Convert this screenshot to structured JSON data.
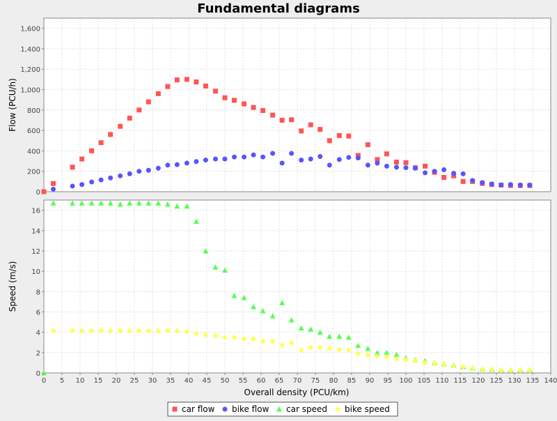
{
  "chart_data": {
    "type": "scatter",
    "title": "Fundamental diagrams",
    "x": {
      "label": "Overall density (PCU/km)",
      "range": [
        0,
        140
      ],
      "ticks": [
        0,
        5,
        10,
        15,
        20,
        25,
        30,
        35,
        40,
        45,
        50,
        55,
        60,
        65,
        70,
        75,
        80,
        85,
        90,
        95,
        100,
        105,
        110,
        115,
        120,
        125,
        130,
        135,
        140
      ],
      "tick_labels": [
        "0",
        "5",
        "10",
        "15",
        "20",
        "25",
        "30",
        "35",
        "40",
        "45",
        "50",
        "55",
        "60",
        "65",
        "70",
        "75",
        "80",
        "85",
        "90",
        "95",
        "100",
        "105",
        "110",
        "115",
        "120",
        "125",
        "130",
        "135",
        "140"
      ]
    },
    "panels": [
      {
        "name": "flow",
        "ylabel": "Flow (PCU/h)",
        "ylim": [
          0,
          1700
        ],
        "yticks": [
          0,
          200,
          400,
          600,
          800,
          1000,
          1200,
          1400,
          1600
        ],
        "ytick_labels": [
          "0",
          "200",
          "400",
          "600",
          "800",
          "1,000",
          "1,200",
          "1,400",
          "1,600"
        ],
        "grid": true,
        "series": [
          {
            "name": "car flow",
            "color": "#ff5555",
            "marker": "square",
            "points": [
              [
                0,
                0
              ],
              [
                2.6,
                80
              ],
              [
                7.9,
                240
              ],
              [
                10.5,
                320
              ],
              [
                13.2,
                400
              ],
              [
                15.8,
                480
              ],
              [
                18.4,
                560
              ],
              [
                21.1,
                640
              ],
              [
                23.7,
                720
              ],
              [
                26.3,
                800
              ],
              [
                28.9,
                880
              ],
              [
                31.6,
                960
              ],
              [
                34.2,
                1030
              ],
              [
                36.8,
                1095
              ],
              [
                39.5,
                1100
              ],
              [
                42.1,
                1075
              ],
              [
                44.7,
                1035
              ],
              [
                47.4,
                985
              ],
              [
                50.0,
                920
              ],
              [
                52.6,
                895
              ],
              [
                55.3,
                860
              ],
              [
                57.9,
                825
              ],
              [
                60.5,
                795
              ],
              [
                63.2,
                750
              ],
              [
                65.8,
                700
              ],
              [
                68.4,
                705
              ],
              [
                71.1,
                595
              ],
              [
                73.7,
                655
              ],
              [
                76.3,
                610
              ],
              [
                78.9,
                500
              ],
              [
                81.6,
                550
              ],
              [
                84.2,
                545
              ],
              [
                86.8,
                355
              ],
              [
                89.5,
                460
              ],
              [
                92.1,
                315
              ],
              [
                94.7,
                370
              ],
              [
                97.4,
                290
              ],
              [
                100.0,
                285
              ],
              [
                102.6,
                235
              ],
              [
                105.3,
                250
              ],
              [
                107.9,
                190
              ],
              [
                110.5,
                140
              ],
              [
                113.2,
                155
              ],
              [
                115.8,
                100
              ],
              [
                118.4,
                100
              ],
              [
                121.1,
                80
              ],
              [
                123.7,
                70
              ],
              [
                126.3,
                65
              ],
              [
                128.9,
                60
              ],
              [
                131.6,
                60
              ],
              [
                134.2,
                60
              ]
            ]
          },
          {
            "name": "bike flow",
            "color": "#5555ff",
            "marker": "circle",
            "points": [
              [
                2.6,
                25
              ],
              [
                7.9,
                55
              ],
              [
                10.5,
                70
              ],
              [
                13.2,
                95
              ],
              [
                15.8,
                115
              ],
              [
                18.4,
                135
              ],
              [
                21.1,
                155
              ],
              [
                23.7,
                175
              ],
              [
                26.3,
                200
              ],
              [
                28.9,
                210
              ],
              [
                31.6,
                230
              ],
              [
                34.2,
                260
              ],
              [
                36.8,
                265
              ],
              [
                39.5,
                280
              ],
              [
                42.1,
                295
              ],
              [
                44.7,
                310
              ],
              [
                47.4,
                320
              ],
              [
                50.0,
                320
              ],
              [
                52.6,
                340
              ],
              [
                55.3,
                340
              ],
              [
                57.9,
                360
              ],
              [
                60.5,
                340
              ],
              [
                63.2,
                375
              ],
              [
                65.8,
                280
              ],
              [
                68.4,
                375
              ],
              [
                71.1,
                310
              ],
              [
                73.7,
                320
              ],
              [
                76.3,
                345
              ],
              [
                78.9,
                260
              ],
              [
                81.6,
                315
              ],
              [
                84.2,
                335
              ],
              [
                86.8,
                330
              ],
              [
                89.5,
                260
              ],
              [
                92.1,
                280
              ],
              [
                94.7,
                250
              ],
              [
                97.4,
                240
              ],
              [
                100.0,
                235
              ],
              [
                102.6,
                230
              ],
              [
                105.3,
                185
              ],
              [
                107.9,
                200
              ],
              [
                110.5,
                215
              ],
              [
                113.2,
                180
              ],
              [
                115.8,
                175
              ],
              [
                118.4,
                110
              ],
              [
                121.1,
                90
              ],
              [
                123.7,
                75
              ],
              [
                126.3,
                65
              ],
              [
                128.9,
                70
              ],
              [
                131.6,
                65
              ],
              [
                134.2,
                65
              ]
            ]
          }
        ]
      },
      {
        "name": "speed",
        "ylabel": "Speed (m/s)",
        "ylim": [
          0,
          17
        ],
        "yticks": [
          0,
          2,
          4,
          6,
          8,
          10,
          12,
          14,
          16
        ],
        "ytick_labels": [
          "0",
          "2",
          "4",
          "6",
          "8",
          "10",
          "12",
          "14",
          "16"
        ],
        "grid": true,
        "series": [
          {
            "name": "car speed",
            "color": "#55ff55",
            "marker": "triangle",
            "points": [
              [
                0,
                0
              ],
              [
                2.6,
                16.7
              ],
              [
                7.9,
                16.7
              ],
              [
                10.5,
                16.7
              ],
              [
                13.2,
                16.7
              ],
              [
                15.8,
                16.7
              ],
              [
                18.4,
                16.7
              ],
              [
                21.1,
                16.6
              ],
              [
                23.7,
                16.7
              ],
              [
                26.3,
                16.7
              ],
              [
                28.9,
                16.7
              ],
              [
                31.6,
                16.7
              ],
              [
                34.2,
                16.6
              ],
              [
                36.8,
                16.4
              ],
              [
                39.5,
                16.4
              ],
              [
                42.1,
                14.9
              ],
              [
                44.7,
                12.0
              ],
              [
                47.4,
                10.4
              ],
              [
                50.0,
                10.1
              ],
              [
                52.6,
                7.6
              ],
              [
                55.3,
                7.4
              ],
              [
                57.9,
                6.5
              ],
              [
                60.5,
                6.1
              ],
              [
                63.2,
                5.6
              ],
              [
                65.8,
                6.9
              ],
              [
                68.4,
                5.2
              ],
              [
                71.1,
                4.4
              ],
              [
                73.7,
                4.3
              ],
              [
                76.3,
                4.0
              ],
              [
                78.9,
                3.6
              ],
              [
                81.6,
                3.6
              ],
              [
                84.2,
                3.5
              ],
              [
                86.8,
                2.7
              ],
              [
                89.5,
                2.4
              ],
              [
                92.1,
                2.0
              ],
              [
                94.7,
                2.0
              ],
              [
                97.4,
                1.8
              ],
              [
                100.0,
                1.5
              ],
              [
                102.6,
                1.3
              ],
              [
                105.3,
                1.2
              ],
              [
                107.9,
                1.0
              ],
              [
                110.5,
                0.9
              ],
              [
                113.2,
                0.8
              ],
              [
                115.8,
                0.6
              ],
              [
                118.4,
                0.5
              ],
              [
                121.1,
                0.4
              ],
              [
                123.7,
                0.35
              ],
              [
                126.3,
                0.3
              ],
              [
                128.9,
                0.3
              ],
              [
                131.6,
                0.3
              ],
              [
                134.2,
                0.3
              ]
            ]
          },
          {
            "name": "bike speed",
            "color": "#ffff55",
            "marker": "diamond",
            "points": [
              [
                2.6,
                4.15
              ],
              [
                7.9,
                4.15
              ],
              [
                10.5,
                4.15
              ],
              [
                13.2,
                4.15
              ],
              [
                15.8,
                4.15
              ],
              [
                18.4,
                4.15
              ],
              [
                21.1,
                4.15
              ],
              [
                23.7,
                4.15
              ],
              [
                26.3,
                4.15
              ],
              [
                28.9,
                4.15
              ],
              [
                31.6,
                4.15
              ],
              [
                34.2,
                4.15
              ],
              [
                36.8,
                4.15
              ],
              [
                39.5,
                4.05
              ],
              [
                42.1,
                3.85
              ],
              [
                44.7,
                3.75
              ],
              [
                47.4,
                3.65
              ],
              [
                50.0,
                3.5
              ],
              [
                52.6,
                3.5
              ],
              [
                55.3,
                3.35
              ],
              [
                57.9,
                3.35
              ],
              [
                60.5,
                3.1
              ],
              [
                63.2,
                3.1
              ],
              [
                65.8,
                2.75
              ],
              [
                68.4,
                2.95
              ],
              [
                71.1,
                2.25
              ],
              [
                73.7,
                2.5
              ],
              [
                76.3,
                2.5
              ],
              [
                78.9,
                2.4
              ],
              [
                81.6,
                2.3
              ],
              [
                84.2,
                2.25
              ],
              [
                86.8,
                1.9
              ],
              [
                89.5,
                1.75
              ],
              [
                92.1,
                1.65
              ],
              [
                94.7,
                1.6
              ],
              [
                97.4,
                1.4
              ],
              [
                100.0,
                1.3
              ],
              [
                102.6,
                1.2
              ],
              [
                105.3,
                1.0
              ],
              [
                107.9,
                0.95
              ],
              [
                110.5,
                0.85
              ],
              [
                113.2,
                0.75
              ],
              [
                115.8,
                0.6
              ],
              [
                118.4,
                0.45
              ],
              [
                121.1,
                0.35
              ],
              [
                123.7,
                0.3
              ],
              [
                126.3,
                0.25
              ],
              [
                128.9,
                0.25
              ],
              [
                131.6,
                0.25
              ],
              [
                134.2,
                0.25
              ]
            ]
          }
        ]
      }
    ],
    "legend": {
      "position": "bottom",
      "items": [
        {
          "label": "car flow",
          "color": "#ff5555",
          "marker": "square"
        },
        {
          "label": "bike flow",
          "color": "#5555ff",
          "marker": "circle"
        },
        {
          "label": "car speed",
          "color": "#55ff55",
          "marker": "triangle"
        },
        {
          "label": "bike speed",
          "color": "#ffff55",
          "marker": "diamond"
        }
      ]
    }
  }
}
